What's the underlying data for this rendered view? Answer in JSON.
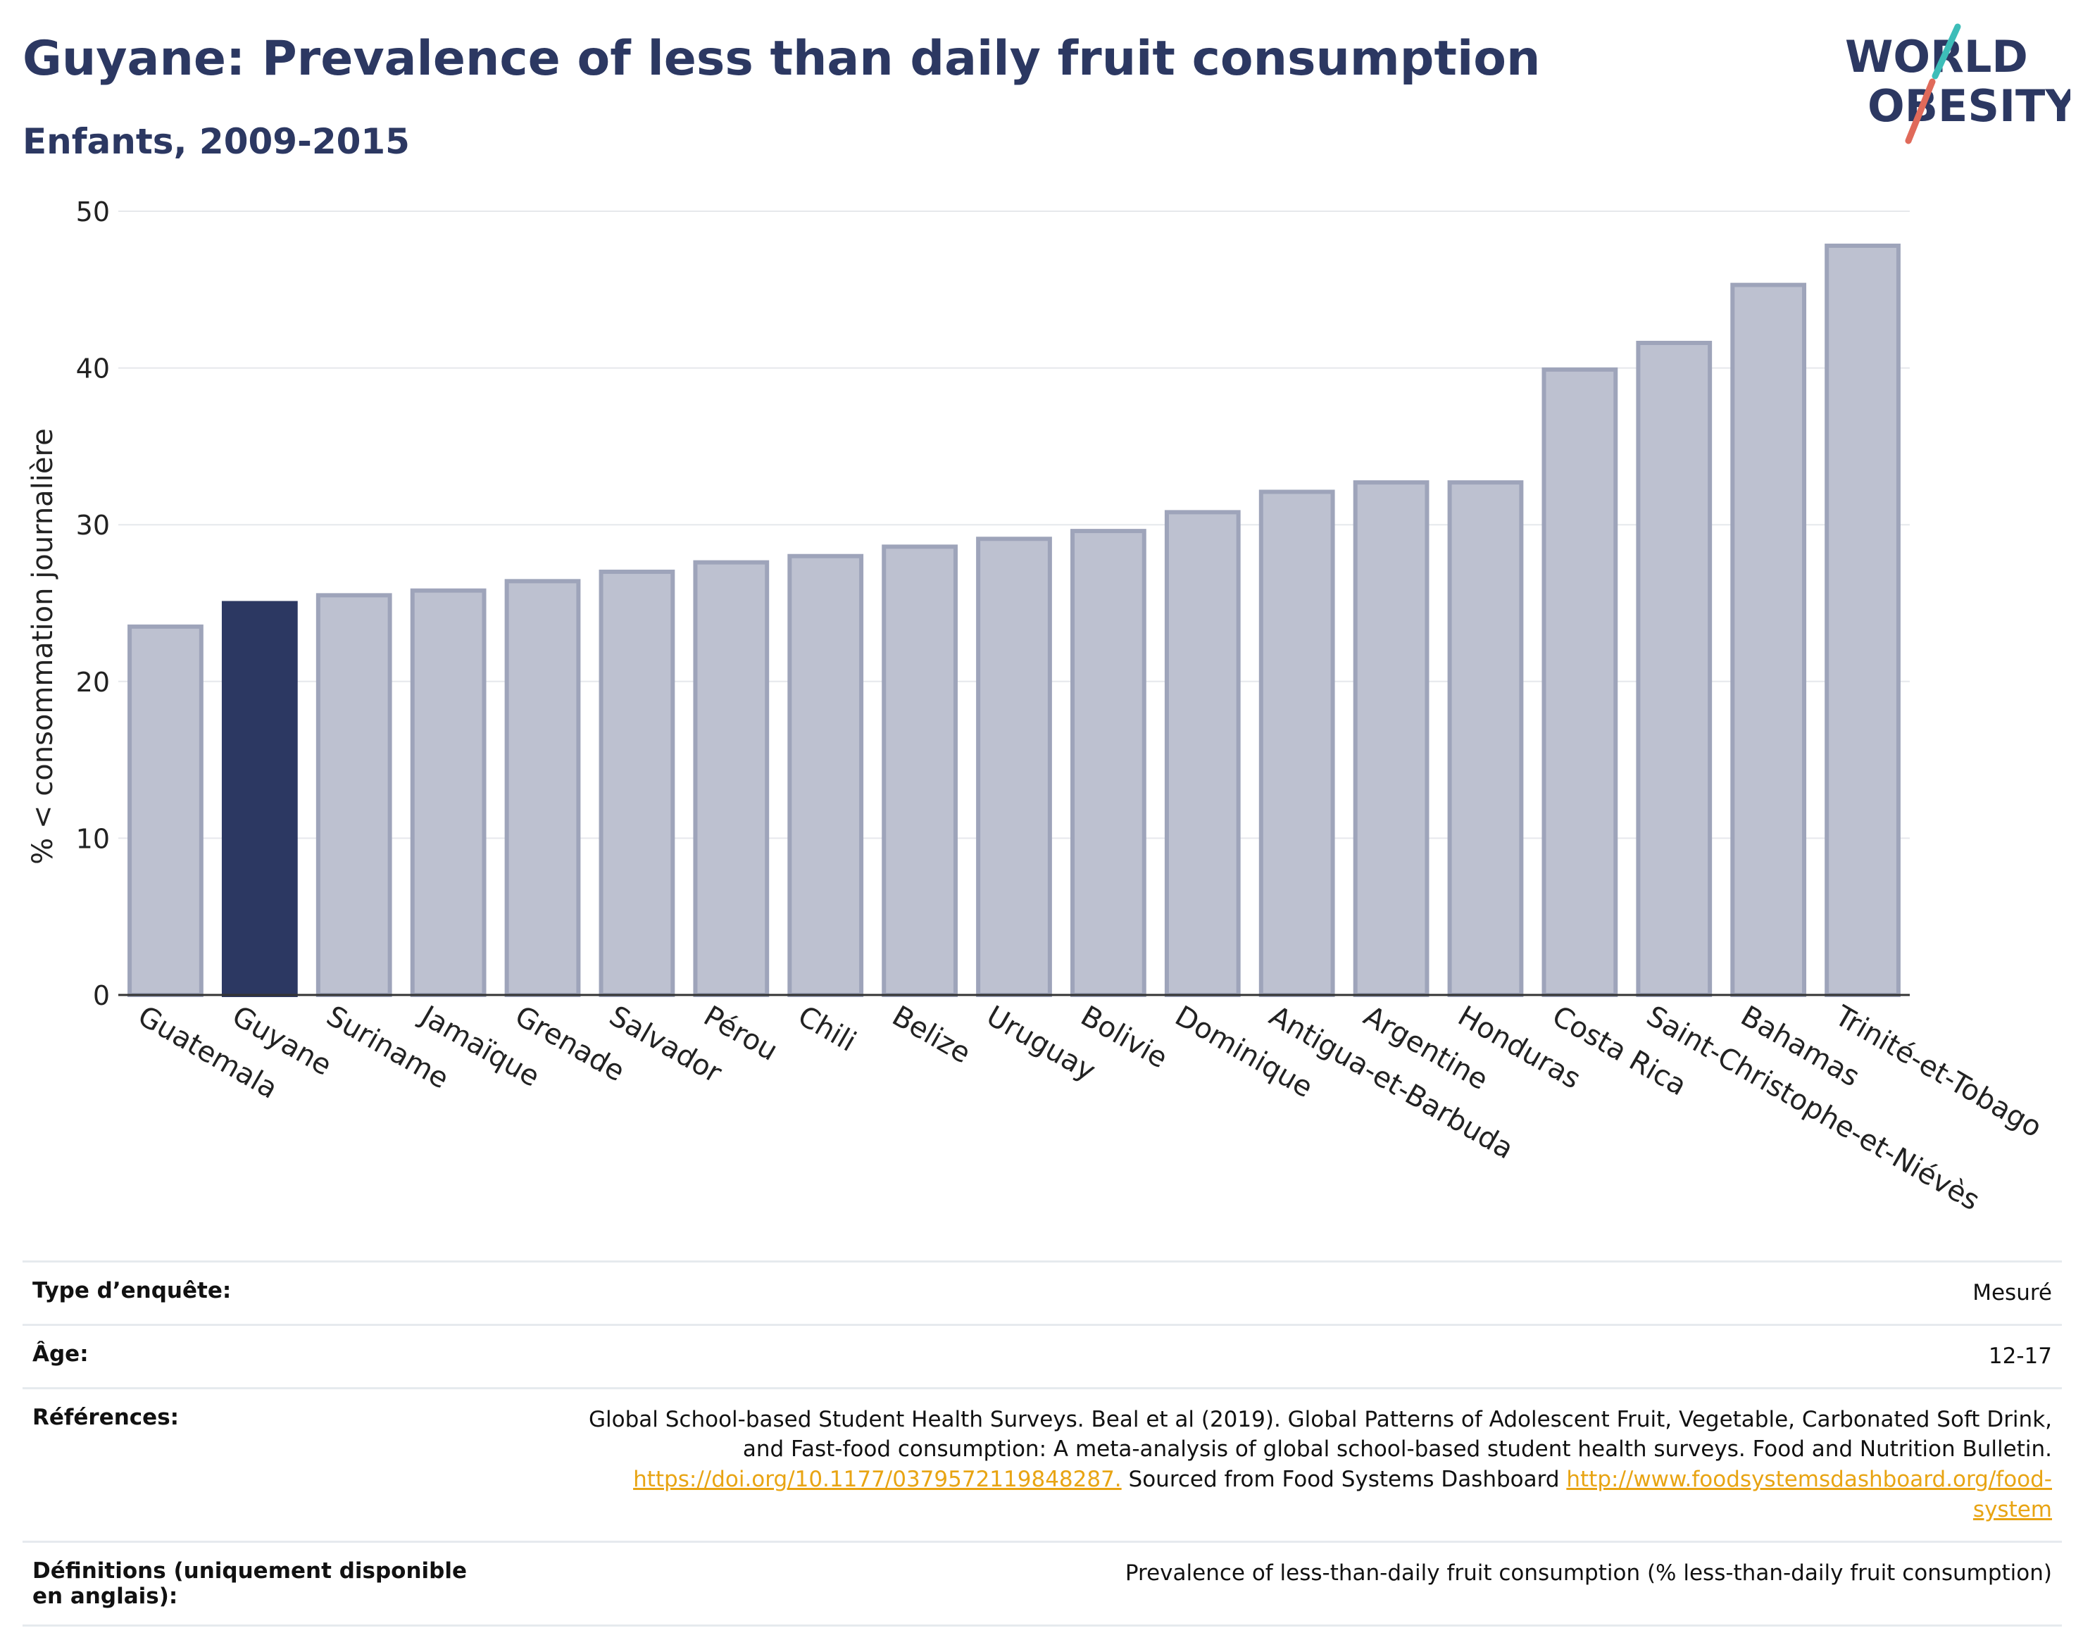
{
  "title": "Guyane: Prevalence of less than daily fruit consumption",
  "subtitle": "Enfants, 2009-2015",
  "logo": {
    "line1": "WORLD",
    "line2": "OBESITY",
    "colors": {
      "text": "#2c3862",
      "slash_top": "#3dbdb8",
      "slash_bottom": "#e06a5a"
    }
  },
  "colors": {
    "bar": "#bdc1d0",
    "bar_border": "#9ea4ba",
    "highlight": "#2c3862",
    "grid": "#e6e8ec",
    "axis": "#333333"
  },
  "chart_data": {
    "type": "bar",
    "ylabel": "% < consommation journalière",
    "ylim": [
      0,
      50
    ],
    "yticks": [
      0,
      10,
      20,
      30,
      40,
      50
    ],
    "grid": true,
    "highlight": "Guyane",
    "categories": [
      "Guatemala",
      "Guyane",
      "Suriname",
      "Jamaïque",
      "Grenade",
      "Salvador",
      "Pérou",
      "Chili",
      "Belize",
      "Uruguay",
      "Bolivie",
      "Dominique",
      "Antigua-et-Barbuda",
      "Argentine",
      "Honduras",
      "Costa Rica",
      "Saint-Christophe-et-Niévès",
      "Bahamas",
      "Trinité-et-Tobago"
    ],
    "values": [
      23.5,
      25.0,
      25.5,
      25.8,
      26.4,
      27.0,
      27.6,
      28.0,
      28.6,
      29.1,
      29.6,
      30.8,
      32.1,
      32.7,
      32.7,
      39.9,
      41.6,
      45.3,
      47.8
    ]
  },
  "info": [
    {
      "label": "Type d’enquête:",
      "value": "Mesuré"
    },
    {
      "label": "Âge:",
      "value": "12-17"
    },
    {
      "label": "Références:",
      "ref_text1": "Global School-based Student Health Surveys. Beal et al (2019). Global Patterns of Adolescent Fruit, Vegetable, Carbonated Soft Drink,",
      "ref_text2": "and Fast-food consumption: A meta-analysis of global school-based student health surveys. Food and Nutrition Bulletin.",
      "ref_link1": "https://doi.org/10.1177/0379572119848287.",
      "ref_text3": " Sourced from Food Systems Dashboard ",
      "ref_link2a": "http://www.foodsystemsdashboard.org/food-",
      "ref_link2b": "system"
    },
    {
      "label": "Définitions (uniquement disponible en anglais):",
      "value": "Prevalence of less-than-daily fruit consumption (% less-than-daily fruit consumption)"
    }
  ]
}
